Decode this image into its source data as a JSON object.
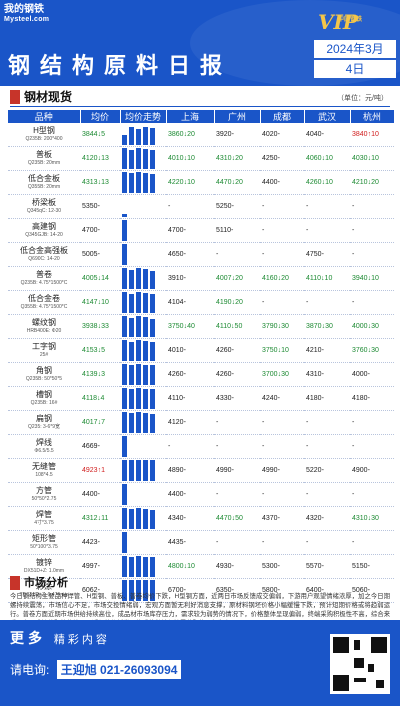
{
  "header": {
    "logo_line1": "我的钢铁",
    "logo_line2": "Mysteel.com",
    "title": "钢结构原料日报",
    "vip_text": "VIP",
    "vip_sub": "中国钢铁",
    "year_month": "2024年3月",
    "day": "4日"
  },
  "section": {
    "title": "钢材现货",
    "unit": "（单位：元/吨）"
  },
  "table": {
    "headers": [
      "品种",
      "均价",
      "均价走势",
      "上海",
      "广州",
      "成都",
      "武汉",
      "杭州"
    ],
    "rows": [
      {
        "name": "H型钢",
        "spec": "Q235B: 200*400",
        "avg": "3844↓5",
        "sh": "3860↓20",
        "gz": "3920-",
        "cd": "4020-",
        "wh": "4040-",
        "hz": "3840↑10",
        "bars": [
          10,
          18,
          16,
          18,
          17
        ]
      },
      {
        "name": "普板",
        "spec": "Q235B: 20mm",
        "avg": "4120↓13",
        "sh": "4010↓10",
        "gz": "4310↓20",
        "cd": "4250-",
        "wh": "4060↓10",
        "hz": "4030↓10",
        "bars": [
          21,
          19,
          21,
          20,
          19
        ]
      },
      {
        "name": "低合金板",
        "spec": "Q355B: 20mm",
        "avg": "4313↓13",
        "sh": "4220↓10",
        "gz": "4470↓20",
        "cd": "4400-",
        "wh": "4260↓10",
        "hz": "4210↓20",
        "bars": [
          21,
          20,
          21,
          20,
          19
        ]
      },
      {
        "name": "桥梁板",
        "spec": "Q345qC: 12-30",
        "avg": "5350-",
        "sh": "-",
        "gz": "5250-",
        "cd": "-",
        "wh": "-",
        "hz": "-",
        "bars": [
          3,
          0,
          0,
          0,
          0
        ]
      },
      {
        "name": "高建钢",
        "spec": "Q345GJB: 14-20",
        "avg": "4700-",
        "sh": "4700-",
        "gz": "5110-",
        "cd": "-",
        "wh": "-",
        "hz": "-",
        "bars": [
          21,
          0,
          0,
          0,
          0
        ]
      },
      {
        "name": "低合金高强板",
        "spec": "Q690C: 14-20",
        "avg": "5005-",
        "sh": "4650-",
        "gz": "-",
        "cd": "-",
        "wh": "4750-",
        "hz": "-",
        "bars": [
          21,
          0,
          0,
          0,
          0
        ]
      },
      {
        "name": "普卷",
        "spec": "Q235B: 4.75*1500*C",
        "avg": "4005↓14",
        "sh": "3910-",
        "gz": "4007↓20",
        "cd": "4160↓20",
        "wh": "4110↓10",
        "hz": "3940↓10",
        "bars": [
          21,
          19,
          21,
          20,
          18
        ]
      },
      {
        "name": "低合金卷",
        "spec": "Q355B: 4.75*1500*C",
        "avg": "4147↓10",
        "sh": "4104-",
        "gz": "4190↓20",
        "cd": "-",
        "wh": "-",
        "hz": "-",
        "bars": [
          21,
          19,
          21,
          20,
          19
        ]
      },
      {
        "name": "螺纹钢",
        "spec": "HRB400E: Φ20",
        "avg": "3938↓33",
        "sh": "3750↓40",
        "gz": "4110↓50",
        "cd": "3790↓30",
        "wh": "3870↓30",
        "hz": "4000↓30",
        "bars": [
          21,
          19,
          21,
          20,
          18
        ]
      },
      {
        "name": "工字钢",
        "spec": "25#",
        "avg": "4153↓5",
        "sh": "4010-",
        "gz": "4260-",
        "cd": "3750↓10",
        "wh": "4210-",
        "hz": "3760↓30",
        "bars": [
          21,
          19,
          21,
          20,
          19
        ]
      },
      {
        "name": "角钢",
        "spec": "Q235B: 50*50*5",
        "avg": "4139↓3",
        "sh": "4260-",
        "gz": "4260-",
        "cd": "3700↓30",
        "wh": "4310-",
        "hz": "4000-",
        "bars": [
          21,
          20,
          21,
          20,
          20
        ]
      },
      {
        "name": "槽钢",
        "spec": "Q235B: 16#",
        "avg": "4118↓4",
        "sh": "4110-",
        "gz": "4330-",
        "cd": "4240-",
        "wh": "4180-",
        "hz": "4180-",
        "bars": [
          21,
          20,
          21,
          20,
          20
        ]
      },
      {
        "name": "扁钢",
        "spec": "Q235: 3-6*9宽",
        "avg": "4017↓7",
        "sh": "4120-",
        "gz": "-",
        "cd": "-",
        "wh": "-",
        "hz": "-",
        "bars": [
          21,
          20,
          21,
          20,
          19
        ]
      },
      {
        "name": "焊线",
        "spec": "Φ6.5/5.5",
        "avg": "4669-",
        "sh": "-",
        "gz": "-",
        "cd": "-",
        "wh": "-",
        "hz": "-",
        "bars": [
          21,
          0,
          0,
          0,
          0
        ]
      },
      {
        "name": "无缝管",
        "spec": "108*4.5",
        "avg": "4923↑1",
        "sh": "4890-",
        "gz": "4990-",
        "cd": "4990-",
        "wh": "5220-",
        "hz": "4900-",
        "bars": [
          21,
          21,
          21,
          21,
          21
        ]
      },
      {
        "name": "方管",
        "spec": "50*50*2.75",
        "avg": "4400-",
        "sh": "4400-",
        "gz": "-",
        "cd": "-",
        "wh": "-",
        "hz": "-",
        "bars": [
          21,
          0,
          0,
          0,
          0
        ]
      },
      {
        "name": "焊管",
        "spec": "4寸*3.75",
        "avg": "4312↓11",
        "sh": "4340-",
        "gz": "4470↓50",
        "cd": "4370-",
        "wh": "4320-",
        "hz": "4310↓30",
        "bars": [
          21,
          20,
          21,
          20,
          19
        ]
      },
      {
        "name": "矩形管",
        "spec": "50*100*3.75",
        "avg": "4423-",
        "sh": "4435-",
        "gz": "-",
        "cd": "-",
        "wh": "-",
        "hz": "-",
        "bars": [
          21,
          0,
          0,
          0,
          0
        ]
      },
      {
        "name": "镀锌",
        "spec": "DX51D+Z: 1.0mm",
        "avg": "4997-",
        "sh": "4800↓10",
        "gz": "4930-",
        "cd": "5300-",
        "wh": "5570-",
        "hz": "5150-",
        "bars": [
          21,
          20,
          21,
          20,
          20
        ]
      },
      {
        "name": "彩涂",
        "spec": "TDC51D+Z: 0.476mm",
        "avg": "6062-",
        "sh": "6700-",
        "gz": "6350-",
        "cd": "5800-",
        "wh": "6400-",
        "hz": "5060-",
        "bars": [
          21,
          21,
          21,
          21,
          21
        ]
      }
    ]
  },
  "market": {
    "title": "市场分析",
    "text": "今日钢结构主要品种焊管、H型钢、普板、普卷均价下跌，H型钢方面，近两日市场反馈成交偏弱，下游用户观望情绪浓厚，加之今日期螺持续震荡，市场信心不足，市场交投情绪弱，宏观方面暂无利好消息支撑，原材料钢坯价格小幅缓慢下跌，预计短期价格或将趋弱运行。普卷方面近期市场供给持续高位，成品材市场库存压力，需求较为弱势的情况下，价格整体呈现偏弱，终端采购积极性不高，综合来看，在需求持续弱势的情况，近期热轧板卷价格或将继续保持震荡弱势运行为主。"
  },
  "footer": {
    "more": "更多",
    "more_sub": "精彩内容",
    "consult_label": "请电询:",
    "consult_contact": "王迎旭 021-26093094"
  }
}
